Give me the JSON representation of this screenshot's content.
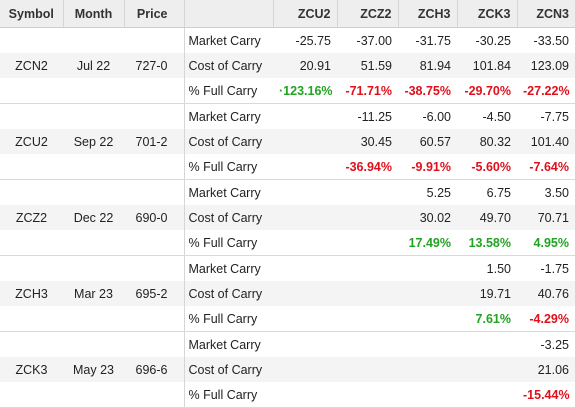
{
  "columns": {
    "symbol": "Symbol",
    "month": "Month",
    "price": "Price",
    "label": "",
    "contracts": [
      "ZCU2",
      "ZCZ2",
      "ZCH3",
      "ZCK3",
      "ZCN3"
    ]
  },
  "row_labels": [
    "Market Carry",
    "Cost of Carry",
    "% Full Carry"
  ],
  "colors": {
    "negative": "#e0101b",
    "positive": "#22a322",
    "header_bg": "#eeeeee",
    "shade_bg": "#f4f4f4"
  },
  "groups": [
    {
      "symbol": "ZCN2",
      "month": "Jul 22",
      "price": "727-0",
      "market_carry": [
        "-25.75",
        "-37.00",
        "-31.75",
        "-30.25",
        "-33.50"
      ],
      "cost_of_carry": [
        "20.91",
        "51.59",
        "81.94",
        "101.84",
        "123.09"
      ],
      "pct_full_carry": [
        "·123.16%",
        "-71.71%",
        "-38.75%",
        "-29.70%",
        "-27.22%"
      ]
    },
    {
      "symbol": "ZCU2",
      "month": "Sep 22",
      "price": "701-2",
      "market_carry": [
        "",
        "-11.25",
        "-6.00",
        "-4.50",
        "-7.75"
      ],
      "cost_of_carry": [
        "",
        "30.45",
        "60.57",
        "80.32",
        "101.40"
      ],
      "pct_full_carry": [
        "",
        "-36.94%",
        "-9.91%",
        "-5.60%",
        "-7.64%"
      ]
    },
    {
      "symbol": "ZCZ2",
      "month": "Dec 22",
      "price": "690-0",
      "market_carry": [
        "",
        "",
        "5.25",
        "6.75",
        "3.50"
      ],
      "cost_of_carry": [
        "",
        "",
        "30.02",
        "49.70",
        "70.71"
      ],
      "pct_full_carry": [
        "",
        "",
        "17.49%",
        "13.58%",
        "4.95%"
      ]
    },
    {
      "symbol": "ZCH3",
      "month": "Mar 23",
      "price": "695-2",
      "market_carry": [
        "",
        "",
        "",
        "1.50",
        "-1.75"
      ],
      "cost_of_carry": [
        "",
        "",
        "",
        "19.71",
        "40.76"
      ],
      "pct_full_carry": [
        "",
        "",
        "",
        "7.61%",
        "-4.29%"
      ]
    },
    {
      "symbol": "ZCK3",
      "month": "May 23",
      "price": "696-6",
      "market_carry": [
        "",
        "",
        "",
        "",
        "-3.25"
      ],
      "cost_of_carry": [
        "",
        "",
        "",
        "",
        "21.06"
      ],
      "pct_full_carry": [
        "",
        "",
        "",
        "",
        "-15.44%"
      ]
    }
  ]
}
